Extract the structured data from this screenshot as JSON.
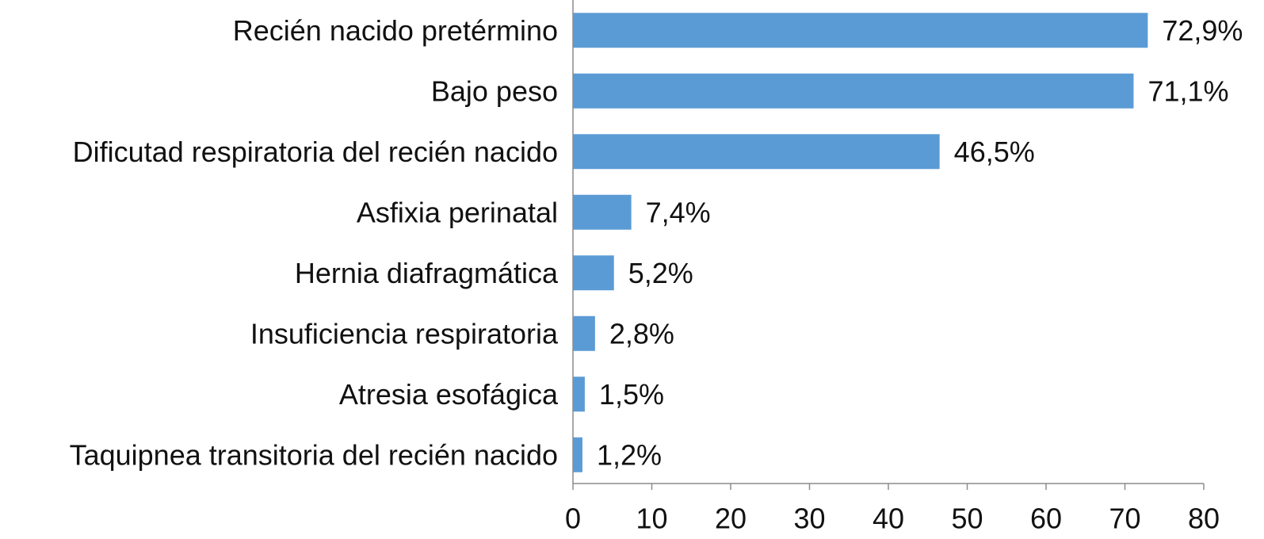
{
  "colors": {
    "bar": "#5b9bd5",
    "axis": "#8c8c8c",
    "text": "#111111",
    "background": "#ffffff"
  },
  "chart_data": {
    "type": "bar",
    "orientation": "horizontal",
    "categories": [
      "Recién nacido pretérmino",
      "Bajo peso",
      "Dificutad respiratoria del recién nacido",
      "Asfixia perinatal",
      "Hernia diafragmática",
      "Insuficiencia respiratoria",
      "Atresia esofágica",
      "Taquipnea transitoria del recién nacido"
    ],
    "values": [
      72.9,
      71.1,
      46.5,
      7.4,
      5.2,
      2.8,
      1.5,
      1.2
    ],
    "data_labels": [
      "72,9%",
      "71,1%",
      "46,5%",
      "7,4%",
      "5,2%",
      "2,8%",
      "1,5%",
      "1,2%"
    ],
    "xlim": [
      0,
      80
    ],
    "x_ticks": [
      0,
      10,
      20,
      30,
      40,
      50,
      60,
      70,
      80
    ],
    "x_tick_labels": [
      "0",
      "10",
      "20",
      "30",
      "40",
      "50",
      "60",
      "70",
      "80"
    ],
    "grid": false,
    "legend": "none",
    "title": "",
    "xlabel": "",
    "ylabel": ""
  }
}
